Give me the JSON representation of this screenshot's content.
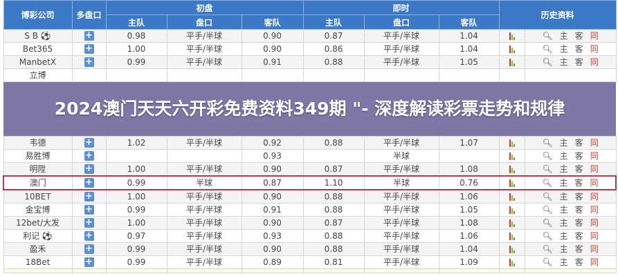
{
  "headers": {
    "company": "博彩公司",
    "multi": "多盘口",
    "initial": "初盘",
    "live": "即时",
    "history": "历史资料",
    "home": "主队",
    "handicap": "盘口",
    "away": "客队"
  },
  "history_labels": {
    "search_icon": "search-icon",
    "home": "主",
    "away": "客",
    "same": "同"
  },
  "rows": [
    {
      "name": "S B ⚽",
      "plus": true,
      "i_home": "0.98",
      "i_hc": "平手/半球",
      "i_away": "0.90",
      "l_home": "0.87",
      "l_hc": "平手/半球",
      "l_away": "1.04"
    },
    {
      "name": "Bet365",
      "plus": true,
      "i_home": "1.00",
      "i_hc": "平手/半球",
      "i_away": "0.90",
      "l_home": "0.86",
      "l_hc": "平手/半球",
      "l_away": "1.04"
    },
    {
      "name": "ManbetX",
      "plus": true,
      "i_home": "0.99",
      "i_hc": "平手/半球",
      "i_away": "0.91",
      "l_home": "0.88",
      "l_hc": "平手/半球",
      "l_away": "1.05"
    },
    {
      "name": "立博",
      "plus": false,
      "i_home": "",
      "i_hc": "",
      "i_away": "",
      "l_home": "",
      "l_hc": "",
      "l_away": ""
    },
    {
      "name": "韦德",
      "plus": true,
      "i_home": "1.02",
      "i_hc": "平手/半球",
      "i_away": "0.92",
      "l_home": "0.88",
      "l_hc": "平手/半球",
      "l_away": "1.07"
    },
    {
      "name": "易胜博",
      "plus": true,
      "i_home": "",
      "i_hc": "",
      "i_away": "0.93",
      "l_home": "",
      "l_hc": "半球",
      "l_away": ""
    },
    {
      "name": "明陞",
      "plus": true,
      "i_home": "1.00",
      "i_hc": "平手/半球",
      "i_away": "0.90",
      "l_home": "0.87",
      "l_hc": "平手/半球",
      "l_away": "1.08"
    },
    {
      "name": "澳门",
      "plus": true,
      "i_home": "0.99",
      "i_hc": "半球",
      "i_away": "0.87",
      "l_home": "1.10",
      "l_hc": "半球",
      "l_away": "0.76",
      "highlight": true
    },
    {
      "name": "10BET",
      "plus": true,
      "i_home": "1.00",
      "i_hc": "平手/半球",
      "i_away": "0.90",
      "l_home": "0.88",
      "l_hc": "平手/半球",
      "l_away": "1.06"
    },
    {
      "name": "金宝博",
      "plus": true,
      "i_home": "0.99",
      "i_hc": "平手/半球",
      "i_away": "0.91",
      "l_home": "0.88",
      "l_hc": "平手/半球",
      "l_away": "1.05"
    },
    {
      "name": "12bet/大发",
      "plus": true,
      "i_home": "1.00",
      "i_hc": "平手/半球",
      "i_away": "0.90",
      "l_home": "0.87",
      "l_hc": "平手/半球",
      "l_away": "1.08"
    },
    {
      "name": "利记 ⚽",
      "plus": true,
      "i_home": "0.97",
      "i_hc": "平手/半球",
      "i_away": "0.93",
      "l_home": "0.88",
      "l_hc": "平手/半球",
      "l_away": "1.06"
    },
    {
      "name": "盈禾",
      "plus": true,
      "i_home": "0.99",
      "i_hc": "平手/半球",
      "i_away": "0.90",
      "l_home": "0.88",
      "l_hc": "平手/半球",
      "l_away": "1.04"
    },
    {
      "name": "18Bet",
      "plus": true,
      "i_home": "0.99",
      "i_hc": "平手/半球",
      "i_away": "0.89",
      "l_home": "0.81",
      "l_hc": "平手/半球",
      "l_away": "1.09"
    }
  ],
  "overlay_title": "2024澳门天天六开彩免费资料349期 \"- 深度解读彩票走势和规律",
  "colors": {
    "header": "#3b78c6",
    "highlight_border": "#b03a4a",
    "same": "#c0392b"
  }
}
